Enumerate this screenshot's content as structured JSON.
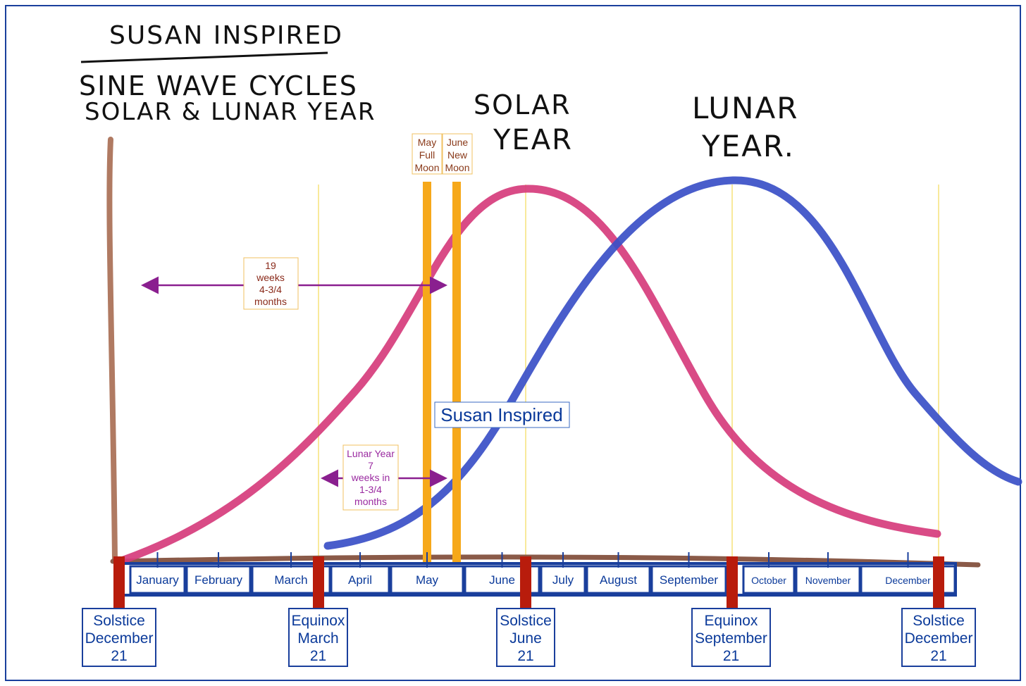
{
  "handwriting": {
    "title": "SUSAN INSPIRED",
    "subtitle_line1": "SINE WAVE CYCLES",
    "subtitle_line2": "SOLAR & LUNAR YEAR",
    "solar_line1": "SOLAR",
    "solar_line2": "YEAR",
    "lunar_line1": "LUNAR",
    "lunar_line2": "YEAR."
  },
  "moon_labels": {
    "may": [
      "May",
      "Full",
      "Moon"
    ],
    "june": [
      "June",
      "New",
      "Moon"
    ]
  },
  "annotations": {
    "solar_span": [
      "19",
      "weeks",
      "4-3/4",
      "months"
    ],
    "lunar_span": [
      "Lunar Year",
      "7",
      "weeks in",
      "1-3/4",
      "months"
    ],
    "watermark": "Susan Inspired"
  },
  "months": [
    "January",
    "February",
    "March",
    "April",
    "May",
    "June",
    "July",
    "August",
    "September",
    "October",
    "November",
    "December"
  ],
  "markers": [
    {
      "lines": [
        "Solstice",
        "December",
        "21"
      ]
    },
    {
      "lines": [
        "Equinox",
        "March",
        "21"
      ]
    },
    {
      "lines": [
        "Solstice",
        "June",
        "21"
      ]
    },
    {
      "lines": [
        "Equinox",
        "September",
        "21"
      ]
    },
    {
      "lines": [
        "Solstice",
        "December",
        "21"
      ]
    }
  ],
  "colors": {
    "frame": "#1a3f9c",
    "solar_curve": "#d63c7c",
    "lunar_curve": "#3a4fc7",
    "axis": "#8a5a48",
    "marker_bar": "#b81c0c",
    "moon_bar": "#f6a81a",
    "arrow": "#8a1f8f"
  }
}
